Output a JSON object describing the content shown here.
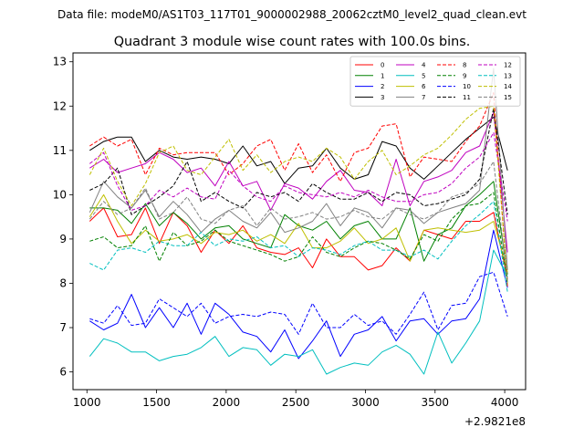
{
  "chart_data": {
    "type": "line",
    "suptitle": "Data file: modeM0/AS1T03_117T01_9000002988_20062cztM0_level2_quad_clean.evt",
    "title": "Quadrant 3 module wise count rates with 100.0s bins.",
    "xlabel": "",
    "ylabel": "",
    "x_offset_label": "+2.9821e8",
    "xlim": [
      900,
      4150
    ],
    "ylim": [
      5.6,
      13.2
    ],
    "xticks": [
      1000,
      1500,
      2000,
      2500,
      3000,
      3500,
      4000
    ],
    "yticks": [
      6,
      7,
      8,
      9,
      10,
      11,
      12,
      13
    ],
    "legend_position": "upper-right",
    "legend_columns": 4,
    "x": [
      1020,
      1120,
      1220,
      1320,
      1420,
      1520,
      1620,
      1720,
      1820,
      1920,
      2020,
      2120,
      2220,
      2320,
      2420,
      2520,
      2620,
      2720,
      2820,
      2920,
      3020,
      3120,
      3220,
      3320,
      3420,
      3520,
      3620,
      3720,
      3820,
      3920,
      4020
    ],
    "series": [
      {
        "name": "0",
        "color": "#ff0000",
        "dash": false,
        "values": [
          9.4,
          9.7,
          9.05,
          9.1,
          9.7,
          8.9,
          9.6,
          9.3,
          8.7,
          9.2,
          8.9,
          9.3,
          8.8,
          8.7,
          8.65,
          8.8,
          8.35,
          9.0,
          8.6,
          8.6,
          8.3,
          8.4,
          8.8,
          8.5,
          9.2,
          9.1,
          9.0,
          9.4,
          9.4,
          9.6,
          8.1
        ]
      },
      {
        "name": "1",
        "color": "#008000",
        "dash": false,
        "values": [
          9.7,
          9.7,
          9.65,
          9.35,
          9.8,
          9.3,
          9.6,
          9.35,
          9.0,
          9.25,
          9.3,
          9.0,
          8.9,
          8.8,
          9.55,
          9.3,
          9.2,
          9.4,
          9.0,
          9.3,
          9.4,
          9.0,
          9.0,
          9.7,
          8.5,
          9.1,
          9.25,
          9.75,
          10.0,
          10.3,
          8.2
        ]
      },
      {
        "name": "2",
        "color": "#0000ff",
        "dash": false,
        "values": [
          7.15,
          6.95,
          7.1,
          7.75,
          7.0,
          7.45,
          7.0,
          7.55,
          6.85,
          7.55,
          7.3,
          6.9,
          6.8,
          6.45,
          6.95,
          6.3,
          6.7,
          7.15,
          6.35,
          6.85,
          6.95,
          7.25,
          6.7,
          7.15,
          7.2,
          6.85,
          7.15,
          7.2,
          7.65,
          9.2,
          7.9
        ]
      },
      {
        "name": "3",
        "color": "#000000",
        "dash": false,
        "values": [
          11.0,
          11.2,
          11.3,
          11.3,
          10.75,
          11.0,
          10.85,
          10.8,
          10.85,
          10.8,
          10.7,
          11.1,
          10.65,
          10.75,
          10.25,
          10.6,
          10.65,
          11.05,
          10.6,
          10.35,
          10.45,
          11.2,
          11.1,
          10.6,
          10.35,
          10.65,
          10.95,
          11.25,
          11.5,
          11.75,
          10.55
        ]
      },
      {
        "name": "4",
        "color": "#bf00bf",
        "dash": false,
        "values": [
          10.6,
          10.8,
          10.5,
          10.6,
          10.7,
          10.95,
          10.8,
          10.5,
          10.6,
          10.2,
          10.75,
          10.2,
          10.3,
          9.65,
          10.25,
          10.15,
          9.9,
          10.3,
          10.55,
          10.1,
          10.05,
          9.75,
          10.8,
          9.75,
          10.3,
          10.4,
          10.55,
          10.95,
          11.1,
          11.85,
          8.7
        ]
      },
      {
        "name": "5",
        "color": "#00bfbf",
        "dash": false,
        "values": [
          6.35,
          6.75,
          6.65,
          6.45,
          6.45,
          6.25,
          6.35,
          6.4,
          6.55,
          6.8,
          6.35,
          6.55,
          6.5,
          6.15,
          6.4,
          6.35,
          6.5,
          5.95,
          6.1,
          6.2,
          6.15,
          6.45,
          6.6,
          6.4,
          5.95,
          6.9,
          6.2,
          6.65,
          7.15,
          8.75,
          8.15
        ]
      },
      {
        "name": "6",
        "color": "#bfbf00",
        "dash": false,
        "values": [
          9.5,
          10.0,
          9.4,
          8.9,
          9.2,
          8.95,
          9.0,
          9.1,
          8.9,
          9.15,
          9.1,
          9.2,
          8.95,
          9.1,
          8.9,
          9.35,
          8.8,
          8.8,
          8.95,
          9.25,
          8.9,
          9.0,
          9.25,
          8.5,
          9.2,
          9.25,
          9.2,
          9.15,
          9.2,
          9.4,
          8.25
        ]
      },
      {
        "name": "7",
        "color": "#808080",
        "dash": false,
        "values": [
          9.6,
          10.3,
          9.95,
          9.7,
          10.1,
          9.5,
          9.85,
          9.55,
          9.15,
          9.45,
          9.65,
          9.4,
          9.25,
          9.6,
          9.15,
          9.25,
          9.4,
          9.8,
          9.3,
          9.7,
          9.6,
          9.25,
          9.7,
          9.65,
          9.35,
          9.6,
          9.7,
          9.8,
          10.1,
          12.85,
          8.3
        ]
      },
      {
        "name": "8",
        "color": "#ff0000",
        "dash": true,
        "values": [
          11.1,
          11.3,
          11.1,
          11.25,
          10.45,
          11.05,
          10.9,
          10.95,
          10.95,
          10.95,
          10.45,
          10.7,
          11.1,
          11.25,
          10.55,
          11.15,
          10.5,
          10.9,
          10.3,
          10.95,
          11.05,
          11.55,
          11.6,
          10.4,
          10.85,
          10.8,
          10.75,
          11.2,
          11.55,
          12.3,
          7.9
        ]
      },
      {
        "name": "9",
        "color": "#008000",
        "dash": true,
        "values": [
          8.95,
          9.05,
          8.8,
          8.85,
          9.3,
          8.5,
          9.15,
          8.85,
          8.95,
          9.2,
          8.95,
          8.85,
          8.75,
          8.65,
          8.5,
          8.6,
          9.05,
          8.7,
          8.6,
          8.8,
          8.95,
          8.9,
          8.75,
          8.55,
          9.1,
          8.95,
          9.45,
          9.75,
          9.8,
          10.05,
          8.0
        ]
      },
      {
        "name": "10",
        "color": "#0000ff",
        "dash": true,
        "values": [
          7.2,
          7.1,
          7.5,
          7.05,
          7.1,
          7.65,
          7.45,
          7.25,
          7.55,
          7.1,
          7.25,
          7.3,
          7.25,
          7.35,
          7.3,
          6.85,
          7.55,
          7.0,
          7.0,
          7.3,
          7.05,
          7.15,
          6.85,
          7.3,
          7.8,
          6.95,
          7.5,
          7.55,
          8.15,
          8.25,
          7.25
        ]
      },
      {
        "name": "11",
        "color": "#000000",
        "dash": true,
        "values": [
          10.1,
          10.25,
          10.6,
          9.55,
          9.75,
          9.95,
          10.2,
          10.75,
          9.85,
          10.05,
          9.85,
          9.7,
          10.05,
          9.95,
          10.05,
          9.85,
          10.25,
          10.05,
          9.9,
          9.9,
          10.05,
          9.85,
          10.05,
          10.0,
          9.75,
          9.8,
          9.9,
          10.0,
          10.35,
          11.95,
          9.55
        ]
      },
      {
        "name": "12",
        "color": "#bf00bf",
        "dash": true,
        "values": [
          10.7,
          10.95,
          10.2,
          9.65,
          9.75,
          10.1,
          9.95,
          10.15,
          9.95,
          9.9,
          10.55,
          10.2,
          9.95,
          9.85,
          10.2,
          10.05,
          10.0,
          9.95,
          10.05,
          9.95,
          10.1,
          9.95,
          9.85,
          9.85,
          10.0,
          10.05,
          10.25,
          10.6,
          10.85,
          11.4,
          9.4
        ]
      },
      {
        "name": "13",
        "color": "#00bfbf",
        "dash": true,
        "values": [
          8.45,
          8.3,
          8.75,
          8.8,
          8.7,
          8.95,
          8.85,
          8.85,
          9.15,
          8.85,
          9.0,
          8.95,
          9.05,
          8.8,
          8.85,
          8.6,
          8.8,
          8.75,
          8.65,
          8.85,
          8.95,
          8.75,
          8.75,
          8.6,
          8.75,
          8.55,
          8.95,
          9.3,
          9.55,
          9.85,
          7.8
        ]
      },
      {
        "name": "14",
        "color": "#bfbf00",
        "dash": true,
        "values": [
          10.45,
          11.05,
          10.3,
          9.75,
          10.25,
          10.95,
          11.1,
          10.55,
          10.45,
          10.85,
          11.25,
          10.55,
          10.9,
          10.5,
          10.75,
          10.85,
          10.75,
          11.05,
          10.85,
          10.35,
          10.75,
          11.0,
          10.45,
          10.65,
          10.9,
          11.05,
          11.35,
          11.7,
          11.95,
          12.0,
          8.0
        ]
      },
      {
        "name": "15",
        "color": "#808080",
        "dash": true,
        "values": [
          9.45,
          9.85,
          9.55,
          9.7,
          10.15,
          9.45,
          9.6,
          9.95,
          9.45,
          9.35,
          9.65,
          9.75,
          9.3,
          9.7,
          9.45,
          9.5,
          9.6,
          9.45,
          9.5,
          9.65,
          9.5,
          9.45,
          9.7,
          9.55,
          9.45,
          9.6,
          9.95,
          10.05,
          10.25,
          10.75,
          8.05
        ]
      }
    ]
  }
}
